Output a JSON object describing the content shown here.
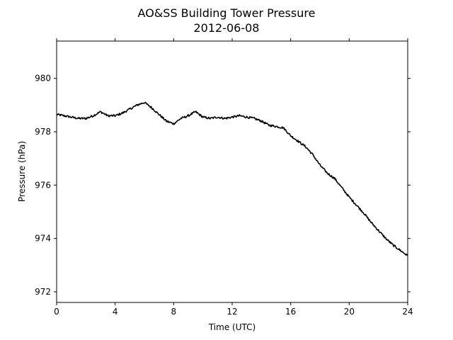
{
  "chart_data": {
    "type": "line",
    "title": "AO&SS Building Tower Pressure",
    "subtitle": "2012-06-08",
    "xlabel": "Time (UTC)",
    "ylabel": "Pressure (hPa)",
    "xlim": [
      0,
      24
    ],
    "ylim": [
      971.6,
      981.4
    ],
    "xticks": [
      0,
      4,
      8,
      12,
      16,
      20,
      24
    ],
    "yticks": [
      972,
      974,
      976,
      978,
      980
    ],
    "grid": false,
    "line_color": "#000000",
    "series": [
      {
        "x": [
          0,
          0.5,
          1,
          1.5,
          2,
          2.5,
          3,
          3.5,
          4,
          4.5,
          5,
          5.5,
          6,
          6.5,
          7,
          7.5,
          8,
          8.5,
          9,
          9.5,
          10,
          10.5,
          11,
          11.5,
          12,
          12.5,
          13,
          13.5,
          14,
          14.5,
          15,
          15.5,
          16,
          16.5,
          17,
          17.5,
          18,
          18.5,
          19,
          19.5,
          20,
          20.5,
          21,
          21.5,
          22,
          22.5,
          23,
          23.5,
          24
        ],
        "y": [
          978.65,
          978.6,
          978.55,
          978.5,
          978.5,
          978.6,
          978.75,
          978.6,
          978.6,
          978.7,
          978.85,
          979.0,
          979.1,
          978.9,
          978.65,
          978.4,
          978.3,
          978.5,
          978.6,
          978.75,
          978.55,
          978.5,
          978.55,
          978.5,
          978.55,
          978.6,
          978.55,
          978.5,
          978.4,
          978.25,
          978.2,
          978.15,
          977.85,
          977.65,
          977.45,
          977.15,
          976.75,
          976.45,
          976.25,
          975.9,
          975.55,
          975.25,
          974.95,
          974.6,
          974.3,
          974.0,
          973.75,
          973.55,
          973.35
        ]
      }
    ]
  }
}
